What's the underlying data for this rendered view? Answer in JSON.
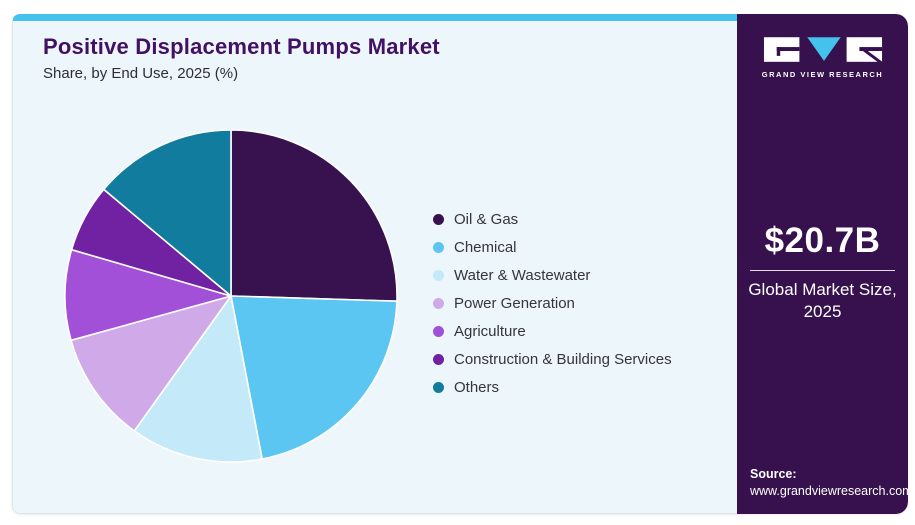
{
  "theme": {
    "topbar_color": "#45C1EE",
    "card_bg": "#EDF6FB",
    "sidebar_bg": "#36114D",
    "title_color": "#421064",
    "text_color": "#2E2E33"
  },
  "header": {
    "title": "Positive Displacement Pumps Market",
    "subtitle": "Share, by End Use, 2025 (%)"
  },
  "chart_data": {
    "type": "pie",
    "title": "Positive Displacement Pumps Market Share, by End Use, 2025 (%)",
    "legend_position": "right",
    "start_angle_deg": 0,
    "direction": "clockwise",
    "data_labels_shown": false,
    "slices": [
      {
        "label": "Oil & Gas",
        "value": 25.5,
        "color": "#38124E"
      },
      {
        "label": "Chemical",
        "value": 21.5,
        "color": "#5BC6F2"
      },
      {
        "label": "Water & Wastewater",
        "value": 12.9,
        "color": "#C4E9F9"
      },
      {
        "label": "Power Generation",
        "value": 10.8,
        "color": "#D0A9E9"
      },
      {
        "label": "Agriculture",
        "value": 8.8,
        "color": "#A350D9"
      },
      {
        "label": "Construction & Building Services",
        "value": 6.6,
        "color": "#7122A2"
      },
      {
        "label": "Others",
        "value": 13.9,
        "color": "#127C9F"
      }
    ]
  },
  "sidebar": {
    "logo_text": "GRAND VIEW RESEARCH",
    "market_size": "$20.7B",
    "market_size_caption_line1": "Global Market Size,",
    "market_size_caption_line2": "2025",
    "source_label": "Source:",
    "source_url": "www.grandviewresearch.com"
  }
}
